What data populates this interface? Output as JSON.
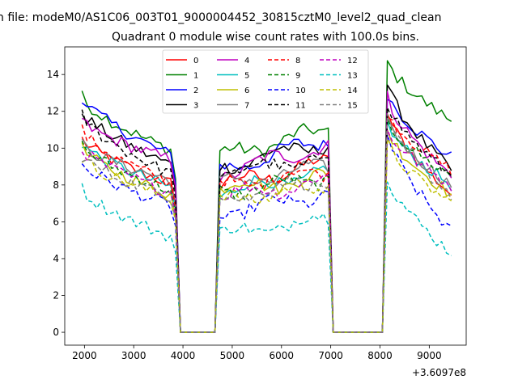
{
  "chart_data": {
    "type": "line",
    "suptitle": "n file: modeM0/AS1C06_003T01_9000004452_30815cztM0_level2_quad_clean",
    "title": "Quadrant 0 module wise count rates with 100.0s bins.",
    "xlabel": "",
    "ylabel": "",
    "x_offset_label": "+3.6097e8",
    "xlim": [
      1600,
      9750
    ],
    "ylim": [
      -0.7,
      15.5
    ],
    "x_ticks": [
      2000,
      3000,
      4000,
      5000,
      6000,
      7000,
      8000,
      9000
    ],
    "x_tick_labels": [
      "2000",
      "3000",
      "4000",
      "5000",
      "6000",
      "7000",
      "8000",
      "9000"
    ],
    "y_ticks": [
      0,
      2,
      4,
      6,
      8,
      10,
      12,
      14
    ],
    "y_tick_labels": [
      "0",
      "2",
      "4",
      "6",
      "8",
      "10",
      "12",
      "14"
    ],
    "legend_position": "upper center",
    "legend_columns": 4,
    "segments": [
      {
        "start": 1950,
        "end": 3850,
        "ramp_end": 3950
      },
      {
        "start": 4750,
        "end": 6950,
        "ramp_start": 4650,
        "ramp_end": 7050
      },
      {
        "start": 8150,
        "end": 9450,
        "ramp_start": 8050
      }
    ],
    "gap_value": 0,
    "x_step": 100,
    "series": [
      {
        "name": "0",
        "color": "#ff0000",
        "dash": "solid",
        "levels": [
          10.5,
          8.0,
          12.0
        ],
        "end_levels": [
          8.0,
          9.2,
          7.5
        ]
      },
      {
        "name": "1",
        "color": "#008000",
        "dash": "solid",
        "levels": [
          12.8,
          9.6,
          14.7
        ],
        "end_levels": [
          9.8,
          11.0,
          11.5
        ]
      },
      {
        "name": "2",
        "color": "#0000ff",
        "dash": "solid",
        "levels": [
          12.8,
          8.8,
          13.0
        ],
        "end_levels": [
          9.5,
          10.5,
          9.5
        ]
      },
      {
        "name": "3",
        "color": "#000000",
        "dash": "solid",
        "levels": [
          12.0,
          9.0,
          13.5
        ],
        "end_levels": [
          9.0,
          10.3,
          8.8
        ]
      },
      {
        "name": "4",
        "color": "#bf00bf",
        "dash": "solid",
        "levels": [
          11.5,
          8.6,
          12.8
        ],
        "end_levels": [
          9.3,
          10.2,
          8.5
        ]
      },
      {
        "name": "5",
        "color": "#00bfbf",
        "dash": "solid",
        "levels": [
          10.3,
          7.6,
          11.3
        ],
        "end_levels": [
          7.8,
          8.7,
          8.0
        ]
      },
      {
        "name": "6",
        "color": "#bfbf00",
        "dash": "solid",
        "levels": [
          10.0,
          7.8,
          11.0
        ],
        "end_levels": [
          7.4,
          8.4,
          7.5
        ]
      },
      {
        "name": "7",
        "color": "#808080",
        "dash": "solid",
        "levels": [
          10.2,
          8.0,
          11.6
        ],
        "end_levels": [
          8.2,
          9.0,
          8.0
        ]
      },
      {
        "name": "8",
        "color": "#ff0000",
        "dash": "dashed",
        "levels": [
          11.0,
          8.0,
          12.0
        ],
        "end_levels": [
          8.0,
          8.8,
          8.8
        ]
      },
      {
        "name": "9",
        "color": "#008000",
        "dash": "dashed",
        "levels": [
          10.2,
          7.6,
          11.5
        ],
        "end_levels": [
          7.6,
          8.4,
          8.5
        ]
      },
      {
        "name": "10",
        "color": "#0000ff",
        "dash": "dashed",
        "levels": [
          9.2,
          6.4,
          10.8
        ],
        "end_levels": [
          6.8,
          7.5,
          5.5
        ]
      },
      {
        "name": "11",
        "color": "#000000",
        "dash": "dashed",
        "levels": [
          11.8,
          8.6,
          12.5
        ],
        "end_levels": [
          8.5,
          9.5,
          8.5
        ]
      },
      {
        "name": "12",
        "color": "#bf00bf",
        "dash": "dashed",
        "levels": [
          10.0,
          7.4,
          11.0
        ],
        "end_levels": [
          7.5,
          8.2,
          8.0
        ]
      },
      {
        "name": "13",
        "color": "#00bfbf",
        "dash": "dashed",
        "levels": [
          7.8,
          5.3,
          8.5
        ],
        "end_levels": [
          5.1,
          6.2,
          4.3
        ]
      },
      {
        "name": "14",
        "color": "#bfbf00",
        "dash": "dashed",
        "levels": [
          9.5,
          7.2,
          10.3
        ],
        "end_levels": [
          7.2,
          7.9,
          7.0
        ]
      },
      {
        "name": "15",
        "color": "#808080",
        "dash": "dashed",
        "levels": [
          9.6,
          7.3,
          11.5
        ],
        "end_levels": [
          7.3,
          8.3,
          7.5
        ]
      }
    ]
  }
}
